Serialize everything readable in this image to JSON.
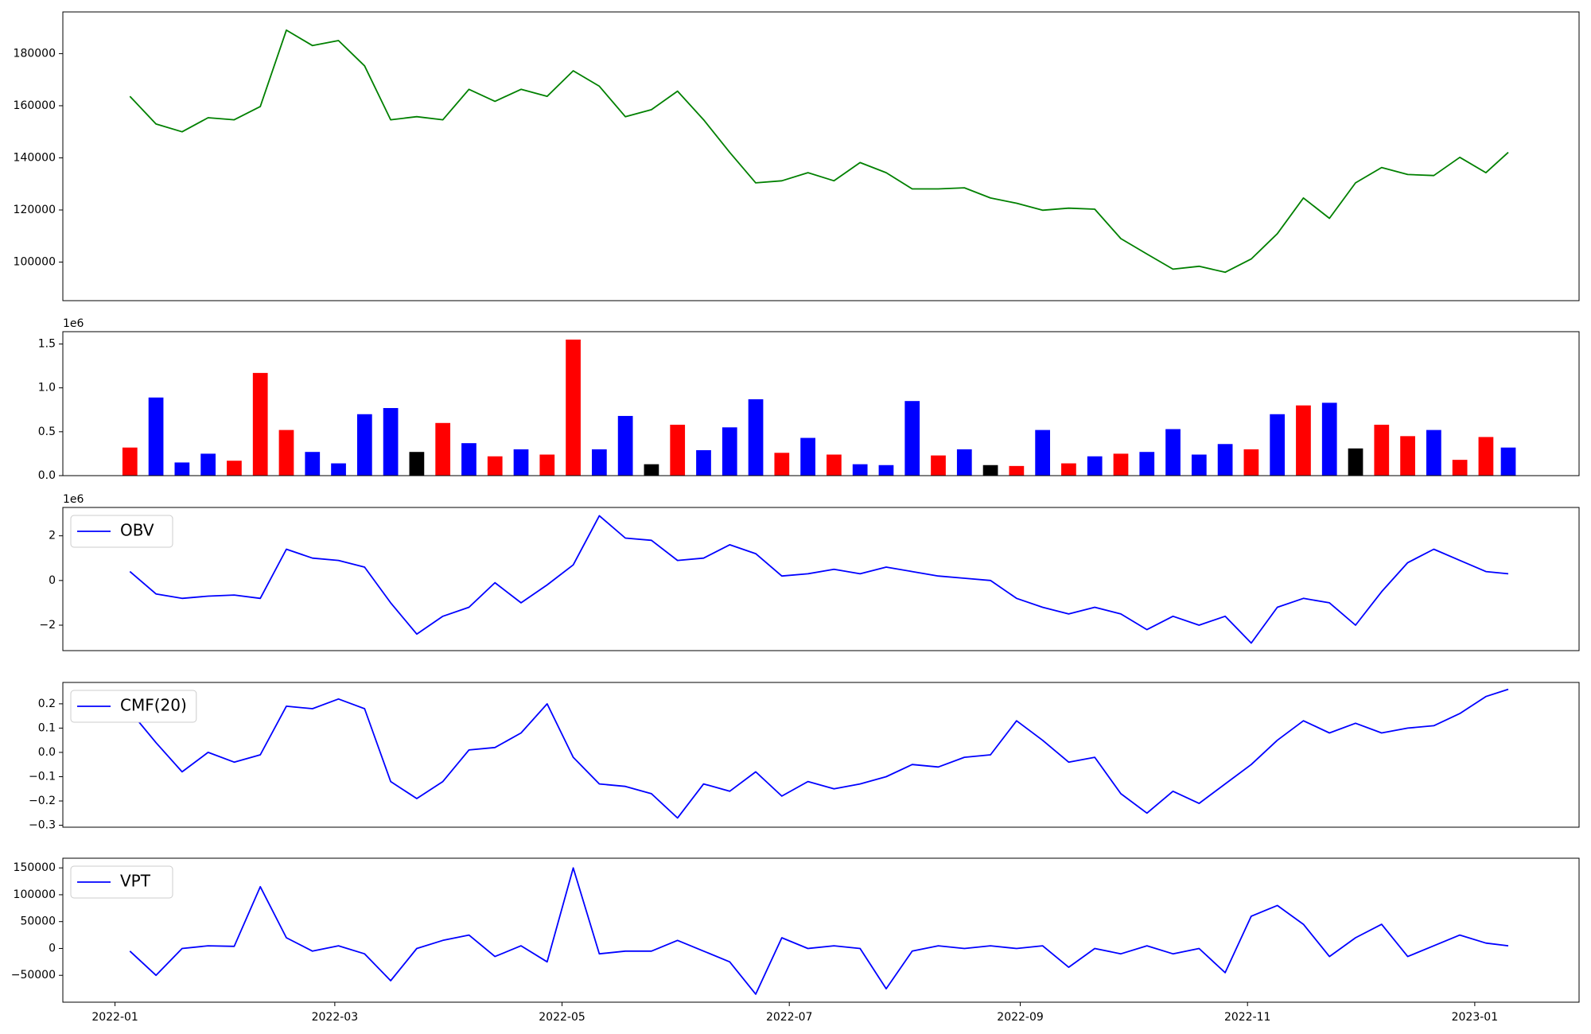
{
  "chart_data": [
    {
      "type": "line",
      "x": [
        "2022-01-05",
        "2022-01-12",
        "2022-01-19",
        "2022-01-26",
        "2022-02-02",
        "2022-02-09",
        "2022-02-16",
        "2022-02-23",
        "2022-03-02",
        "2022-03-09",
        "2022-03-16",
        "2022-03-23",
        "2022-03-30",
        "2022-04-06",
        "2022-04-13",
        "2022-04-20",
        "2022-04-27",
        "2022-05-04",
        "2022-05-11",
        "2022-05-18",
        "2022-05-25",
        "2022-06-01",
        "2022-06-08",
        "2022-06-15",
        "2022-06-22",
        "2022-06-29",
        "2022-07-06",
        "2022-07-13",
        "2022-07-20",
        "2022-07-27",
        "2022-08-03",
        "2022-08-10",
        "2022-08-17",
        "2022-08-24",
        "2022-08-31",
        "2022-09-07",
        "2022-09-14",
        "2022-09-21",
        "2022-09-28",
        "2022-10-05",
        "2022-10-12",
        "2022-10-19",
        "2022-10-26",
        "2022-11-02",
        "2022-11-09",
        "2022-11-16",
        "2022-11-23",
        "2022-11-30",
        "2022-12-07",
        "2022-12-14",
        "2022-12-21",
        "2022-12-28",
        "2023-01-04",
        "2023-01-10"
      ],
      "series": [
        {
          "color": "#008000",
          "values": [
            163600,
            153000,
            150000,
            155400,
            154600,
            159700,
            189000,
            183100,
            185000,
            175300,
            154600,
            155800,
            154600,
            166300,
            161700,
            166300,
            163600,
            173400,
            167500,
            155800,
            158500,
            165600,
            154600,
            142100,
            130400,
            131200,
            134300,
            131200,
            138200,
            134300,
            128100,
            128100,
            128500,
            124600,
            122600,
            119900,
            120700,
            120300,
            109000,
            103100,
            97300,
            98400,
            96100,
            101200,
            110900,
            124600,
            116800,
            130400,
            136300,
            133600,
            133200,
            140200,
            134300,
            142100
          ]
        }
      ],
      "xlim": [
        "2021-12-18",
        "2023-01-29"
      ],
      "ylim": [
        85200,
        196000
      ],
      "yticks": [
        100000,
        120000,
        140000,
        160000,
        180000
      ]
    },
    {
      "type": "bar",
      "x": [
        "2022-01-05",
        "2022-01-12",
        "2022-01-19",
        "2022-01-26",
        "2022-02-02",
        "2022-02-09",
        "2022-02-16",
        "2022-02-23",
        "2022-03-02",
        "2022-03-09",
        "2022-03-16",
        "2022-03-23",
        "2022-03-30",
        "2022-04-06",
        "2022-04-13",
        "2022-04-20",
        "2022-04-27",
        "2022-05-04",
        "2022-05-11",
        "2022-05-18",
        "2022-05-25",
        "2022-06-01",
        "2022-06-08",
        "2022-06-15",
        "2022-06-22",
        "2022-06-29",
        "2022-07-06",
        "2022-07-13",
        "2022-07-20",
        "2022-07-27",
        "2022-08-03",
        "2022-08-10",
        "2022-08-17",
        "2022-08-24",
        "2022-08-31",
        "2022-09-07",
        "2022-09-14",
        "2022-09-21",
        "2022-09-28",
        "2022-10-05",
        "2022-10-12",
        "2022-10-19",
        "2022-10-26",
        "2022-11-02",
        "2022-11-09",
        "2022-11-16",
        "2022-11-23",
        "2022-11-30",
        "2022-12-07",
        "2022-12-14",
        "2022-12-21",
        "2022-12-28",
        "2023-01-04",
        "2023-01-10"
      ],
      "values": [
        320000,
        890000,
        150000,
        250000,
        170000,
        1170000,
        520000,
        270000,
        140000,
        700000,
        770000,
        270000,
        600000,
        370000,
        220000,
        300000,
        240000,
        1550000,
        300000,
        680000,
        130000,
        580000,
        290000,
        550000,
        870000,
        260000,
        430000,
        240000,
        130000,
        120000,
        850000,
        230000,
        300000,
        120000,
        110000,
        520000,
        140000,
        220000,
        250000,
        270000,
        530000,
        240000,
        360000,
        300000,
        700000,
        800000,
        830000,
        310000,
        580000,
        450000,
        520000,
        180000,
        440000,
        320000
      ],
      "colors": [
        "#ff0000",
        "#0000ff",
        "#0000ff",
        "#0000ff",
        "#ff0000",
        "#ff0000",
        "#ff0000",
        "#0000ff",
        "#0000ff",
        "#0000ff",
        "#0000ff",
        "#000000",
        "#ff0000",
        "#0000ff",
        "#ff0000",
        "#0000ff",
        "#ff0000",
        "#ff0000",
        "#0000ff",
        "#0000ff",
        "#000000",
        "#ff0000",
        "#0000ff",
        "#0000ff",
        "#0000ff",
        "#ff0000",
        "#0000ff",
        "#ff0000",
        "#0000ff",
        "#0000ff",
        "#0000ff",
        "#ff0000",
        "#0000ff",
        "#000000",
        "#ff0000",
        "#0000ff",
        "#ff0000",
        "#0000ff",
        "#ff0000",
        "#0000ff",
        "#0000ff",
        "#0000ff",
        "#0000ff",
        "#ff0000",
        "#0000ff",
        "#ff0000",
        "#0000ff",
        "#000000",
        "#ff0000",
        "#ff0000",
        "#0000ff",
        "#ff0000",
        "#ff0000",
        "#0000ff"
      ],
      "xlim": [
        "2021-12-18",
        "2023-01-29"
      ],
      "ylim": [
        0,
        1640000
      ],
      "yticks": [
        {
          "value": 0,
          "label": "0.0"
        },
        {
          "value": 500000,
          "label": "0.5"
        },
        {
          "value": 1000000,
          "label": "1.0"
        },
        {
          "value": 1500000,
          "label": "1.5"
        }
      ],
      "y_offset_label": "1e6"
    },
    {
      "type": "line",
      "x": [
        "2022-01-05",
        "2022-01-12",
        "2022-01-19",
        "2022-01-26",
        "2022-02-02",
        "2022-02-09",
        "2022-02-16",
        "2022-02-23",
        "2022-03-02",
        "2022-03-09",
        "2022-03-16",
        "2022-03-23",
        "2022-03-30",
        "2022-04-06",
        "2022-04-13",
        "2022-04-20",
        "2022-04-27",
        "2022-05-04",
        "2022-05-11",
        "2022-05-18",
        "2022-05-25",
        "2022-06-01",
        "2022-06-08",
        "2022-06-15",
        "2022-06-22",
        "2022-06-29",
        "2022-07-06",
        "2022-07-13",
        "2022-07-20",
        "2022-07-27",
        "2022-08-03",
        "2022-08-10",
        "2022-08-17",
        "2022-08-24",
        "2022-08-31",
        "2022-09-07",
        "2022-09-14",
        "2022-09-21",
        "2022-09-28",
        "2022-10-05",
        "2022-10-12",
        "2022-10-19",
        "2022-10-26",
        "2022-11-02",
        "2022-11-09",
        "2022-11-16",
        "2022-11-23",
        "2022-11-30",
        "2022-12-07",
        "2022-12-14",
        "2022-12-21",
        "2022-12-28",
        "2023-01-04",
        "2023-01-10"
      ],
      "series": [
        {
          "name": "OBV",
          "color": "#0000ff",
          "values": [
            400000,
            -600000,
            -800000,
            -700000,
            -650000,
            -800000,
            1400000,
            1000000,
            900000,
            600000,
            -1000000,
            -2400000,
            -1600000,
            -1200000,
            -100000,
            -1000000,
            -200000,
            700000,
            2900000,
            1900000,
            1800000,
            900000,
            1000000,
            1600000,
            1200000,
            200000,
            300000,
            500000,
            300000,
            600000,
            400000,
            200000,
            100000,
            0,
            -800000,
            -1200000,
            -1500000,
            -1200000,
            -1500000,
            -2200000,
            -1600000,
            -2000000,
            -1600000,
            -2800000,
            -1200000,
            -800000,
            -1000000,
            -2000000,
            -500000,
            800000,
            1400000,
            900000,
            400000,
            300000
          ]
        }
      ],
      "legend": "upper left",
      "xlim": [
        "2021-12-18",
        "2023-01-29"
      ],
      "ylim": [
        -3140000,
        3270000
      ],
      "yticks": [
        {
          "value": -2000000,
          "label": "−2"
        },
        {
          "value": 0,
          "label": "0"
        },
        {
          "value": 2000000,
          "label": "2"
        }
      ],
      "y_offset_label": "1e6"
    },
    {
      "type": "line",
      "x": [
        "2022-01-05",
        "2022-01-12",
        "2022-01-19",
        "2022-01-26",
        "2022-02-02",
        "2022-02-09",
        "2022-02-16",
        "2022-02-23",
        "2022-03-02",
        "2022-03-09",
        "2022-03-16",
        "2022-03-23",
        "2022-03-30",
        "2022-04-06",
        "2022-04-13",
        "2022-04-20",
        "2022-04-27",
        "2022-05-04",
        "2022-05-11",
        "2022-05-18",
        "2022-05-25",
        "2022-06-01",
        "2022-06-08",
        "2022-06-15",
        "2022-06-22",
        "2022-06-29",
        "2022-07-06",
        "2022-07-13",
        "2022-07-20",
        "2022-07-27",
        "2022-08-03",
        "2022-08-10",
        "2022-08-17",
        "2022-08-24",
        "2022-08-31",
        "2022-09-07",
        "2022-09-14",
        "2022-09-21",
        "2022-09-28",
        "2022-10-05",
        "2022-10-12",
        "2022-10-19",
        "2022-10-26",
        "2022-11-02",
        "2022-11-09",
        "2022-11-16",
        "2022-11-23",
        "2022-11-30",
        "2022-12-07",
        "2022-12-14",
        "2022-12-21",
        "2022-12-28",
        "2023-01-04",
        "2023-01-10"
      ],
      "series": [
        {
          "name": "CMF(20)",
          "color": "#0000ff",
          "values": [
            0.17,
            0.04,
            -0.08,
            0.0,
            -0.04,
            -0.01,
            0.19,
            0.18,
            0.22,
            0.18,
            -0.12,
            -0.19,
            -0.12,
            0.01,
            0.02,
            0.08,
            0.2,
            -0.02,
            -0.13,
            -0.14,
            -0.17,
            -0.27,
            -0.13,
            -0.16,
            -0.08,
            -0.18,
            -0.12,
            -0.15,
            -0.13,
            -0.1,
            -0.05,
            -0.06,
            -0.02,
            -0.01,
            0.13,
            0.05,
            -0.04,
            -0.02,
            -0.17,
            -0.25,
            -0.16,
            -0.21,
            -0.13,
            -0.05,
            0.05,
            0.13,
            0.08,
            0.12,
            0.08,
            0.1,
            0.11,
            0.16,
            0.23,
            0.26
          ]
        }
      ],
      "legend": "upper left",
      "xlim": [
        "2021-12-18",
        "2023-01-29"
      ],
      "ylim": [
        -0.308,
        0.288
      ],
      "yticks": [
        {
          "value": -0.3,
          "label": "−0.3"
        },
        {
          "value": -0.2,
          "label": "−0.2"
        },
        {
          "value": -0.1,
          "label": "−0.1"
        },
        {
          "value": 0,
          "label": "0.0"
        },
        0.1,
        0.2
      ]
    },
    {
      "type": "line",
      "x": [
        "2022-01-05",
        "2022-01-12",
        "2022-01-19",
        "2022-01-26",
        "2022-02-02",
        "2022-02-09",
        "2022-02-16",
        "2022-02-23",
        "2022-03-02",
        "2022-03-09",
        "2022-03-16",
        "2022-03-23",
        "2022-03-30",
        "2022-04-06",
        "2022-04-13",
        "2022-04-20",
        "2022-04-27",
        "2022-05-04",
        "2022-05-11",
        "2022-05-18",
        "2022-05-25",
        "2022-06-01",
        "2022-06-08",
        "2022-06-15",
        "2022-06-22",
        "2022-06-29",
        "2022-07-06",
        "2022-07-13",
        "2022-07-20",
        "2022-07-27",
        "2022-08-03",
        "2022-08-10",
        "2022-08-17",
        "2022-08-24",
        "2022-08-31",
        "2022-09-07",
        "2022-09-14",
        "2022-09-21",
        "2022-09-28",
        "2022-10-05",
        "2022-10-12",
        "2022-10-19",
        "2022-10-26",
        "2022-11-02",
        "2022-11-09",
        "2022-11-16",
        "2022-11-23",
        "2022-11-30",
        "2022-12-07",
        "2022-12-14",
        "2022-12-21",
        "2022-12-28",
        "2023-01-04",
        "2023-01-10"
      ],
      "series": [
        {
          "name": "VPT",
          "color": "#0000ff",
          "values": [
            -5000,
            -50000,
            0,
            5000,
            4000,
            115000,
            20000,
            -5000,
            5000,
            -10000,
            -60000,
            0,
            15000,
            25000,
            -15000,
            5000,
            -25000,
            150000,
            -10000,
            -5000,
            -5000,
            15000,
            -5000,
            -25000,
            -85000,
            20000,
            0,
            5000,
            0,
            -75000,
            -5000,
            5000,
            0,
            5000,
            0,
            5000,
            -35000,
            0,
            -10000,
            5000,
            -10000,
            0,
            -45000,
            60000,
            80000,
            45000,
            -15000,
            20000,
            45000,
            -15000,
            5000,
            25000,
            10000,
            5000
          ]
        }
      ],
      "legend": "upper left",
      "xlim": [
        "2021-12-18",
        "2023-01-29"
      ],
      "ylim": [
        -100000,
        168000
      ],
      "yticks": [
        {
          "value": -50000,
          "label": "−50000"
        },
        0,
        50000,
        100000,
        150000
      ],
      "xticks": [
        {
          "value": "2022-01-01",
          "label": "2022-01"
        },
        {
          "value": "2022-03-01",
          "label": "2022-03"
        },
        {
          "value": "2022-05-01",
          "label": "2022-05"
        },
        {
          "value": "2022-07-01",
          "label": "2022-07"
        },
        {
          "value": "2022-09-01",
          "label": "2022-09"
        },
        {
          "value": "2022-11-01",
          "label": "2022-11"
        },
        {
          "value": "2023-01-01",
          "label": "2023-01"
        }
      ]
    }
  ]
}
